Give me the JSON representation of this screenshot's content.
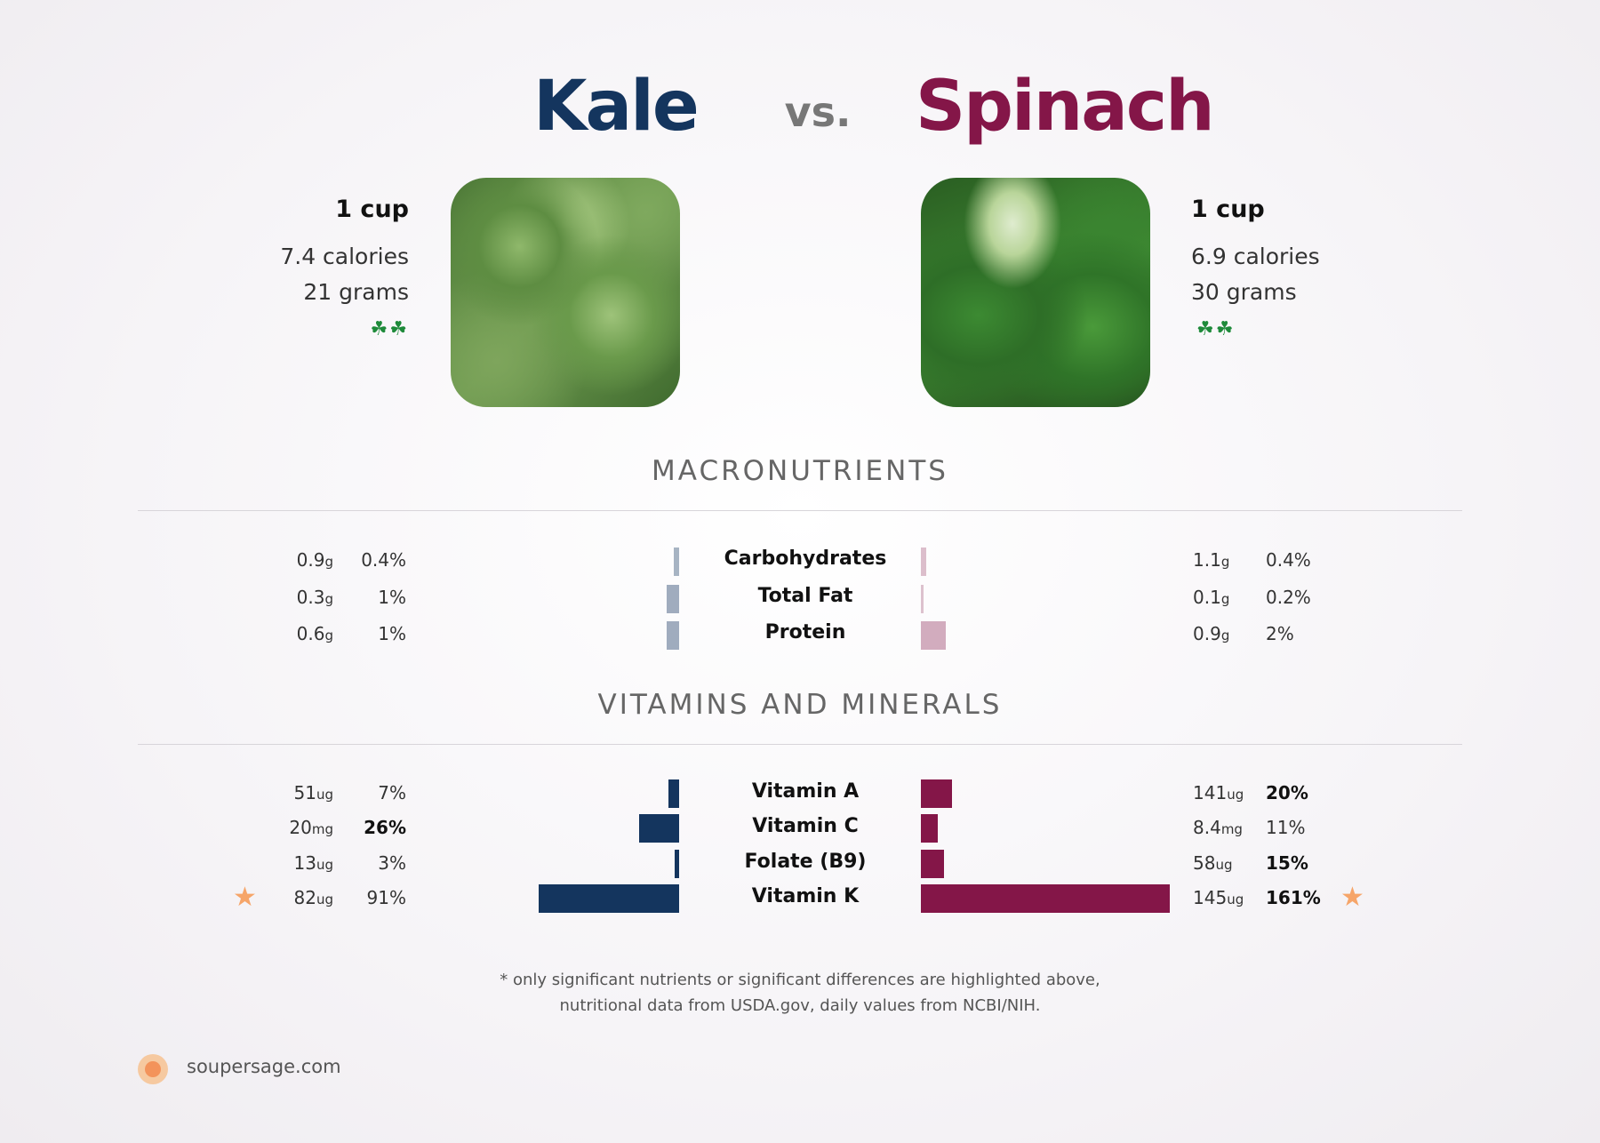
{
  "header": {
    "left_food": "Kale",
    "vs": "vs.",
    "right_food": "Spinach"
  },
  "left_food": {
    "serving": "1 cup",
    "calories": "7.4 calories",
    "grams": "21 grams",
    "leaf_icons": "☘☘"
  },
  "right_food": {
    "serving": "1 cup",
    "calories": "6.9 calories",
    "grams": "30 grams",
    "leaf_icons": "☘☘"
  },
  "colors": {
    "left": "#14355e",
    "right": "#841648",
    "star": "#f6a569"
  },
  "chart_data": [
    {
      "type": "bar",
      "title": "MACRONUTRIENTS",
      "categories": [
        "Carbohydrates",
        "Total Fat",
        "Protein"
      ],
      "series": [
        {
          "name": "Kale",
          "amounts": [
            "0.9",
            "0.3",
            "0.6"
          ],
          "units": [
            "g",
            "g",
            "g"
          ],
          "percent_labels": [
            "0.4%",
            "1%",
            "1%"
          ],
          "values": [
            0.4,
            1,
            1
          ]
        },
        {
          "name": "Spinach",
          "amounts": [
            "1.1",
            "0.1",
            "0.9"
          ],
          "units": [
            "g",
            "g",
            "g"
          ],
          "percent_labels": [
            "0.4%",
            "0.2%",
            "2%"
          ],
          "values": [
            0.4,
            0.2,
            2
          ]
        }
      ]
    },
    {
      "type": "bar",
      "title": "VITAMINS AND MINERALS",
      "categories": [
        "Vitamin A",
        "Vitamin C",
        "Folate (B9)",
        "Vitamin K"
      ],
      "series": [
        {
          "name": "Kale",
          "amounts": [
            "51",
            "20",
            "13",
            "82"
          ],
          "units": [
            "ug",
            "mg",
            "ug",
            "ug"
          ],
          "percent_labels": [
            "7%",
            "26%",
            "3%",
            "91%"
          ],
          "values": [
            7,
            26,
            3,
            91
          ],
          "bold": [
            false,
            true,
            false,
            false
          ],
          "star": [
            false,
            false,
            false,
            true
          ]
        },
        {
          "name": "Spinach",
          "amounts": [
            "141",
            "8.4",
            "58",
            "145"
          ],
          "units": [
            "ug",
            "mg",
            "ug",
            "ug"
          ],
          "percent_labels": [
            "20%",
            "11%",
            "15%",
            "161%"
          ],
          "values": [
            20,
            11,
            15,
            161
          ],
          "bold": [
            true,
            false,
            true,
            true
          ],
          "star": [
            false,
            false,
            false,
            true
          ]
        }
      ]
    }
  ],
  "footnote": {
    "line1": "* only significant nutrients or significant differences are highlighted above,",
    "line2": "nutritional data from USDA.gov, daily values from NCBI/NIH."
  },
  "site": "soupersage.com"
}
